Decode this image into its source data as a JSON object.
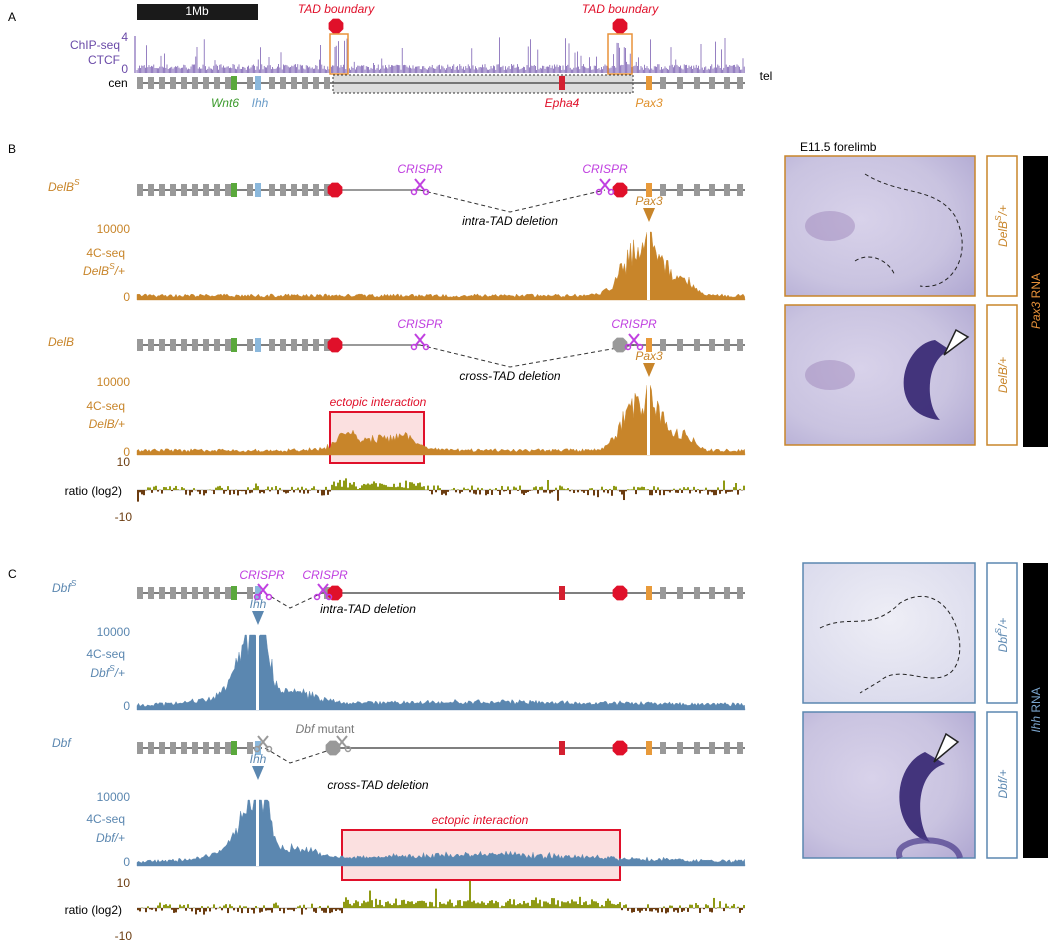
{
  "panel_a": {
    "letter": "A",
    "scale_bar": "1Mb",
    "boundary_labels": [
      "TAD boundary",
      "TAD boundary"
    ],
    "track_label": [
      "ChIP-seq",
      "CTCF"
    ],
    "axis": [
      "4",
      "0"
    ],
    "ends": [
      "cen",
      "tel"
    ],
    "genes": [
      "Wnt6",
      "Ihh",
      "Epha4",
      "Pax3"
    ]
  },
  "panel_b": {
    "letter": "B",
    "image_title": "E11.5 forelimb",
    "rows": [
      {
        "allele": {
          "base": "DelB",
          "sup": "S"
        },
        "crispr": [
          "CRISPR",
          "CRISPR"
        ],
        "deletion": "intra-TAD deletion",
        "gene_mark": "Pax3",
        "axis": [
          "10000",
          "0"
        ],
        "track_label": "4C-seq",
        "sample": {
          "base": "DelB",
          "sup": "S",
          "suffix": "/+"
        }
      },
      {
        "allele": {
          "base": "DelB"
        },
        "crispr": [
          "CRISPR",
          "CRISPR"
        ],
        "deletion": "cross-TAD deletion",
        "gene_mark": "Pax3",
        "axis": [
          "10000",
          "0"
        ],
        "track_label": "4C-seq",
        "sample": {
          "base": "DelB",
          "suffix": "/+"
        },
        "ectopic": "ectopic interaction"
      }
    ],
    "ratio": {
      "label": "ratio (log2)",
      "axis": [
        "10",
        "-10"
      ]
    },
    "image_labels": [
      {
        "base": "DelB",
        "sup": "S",
        "suffix": "/+"
      },
      {
        "base": "DelB",
        "suffix": "/+"
      }
    ],
    "rna_label": {
      "gene": "Pax3",
      "suffix": " RNA"
    }
  },
  "panel_c": {
    "letter": "C",
    "rows": [
      {
        "allele": {
          "base": "Dbf",
          "sup": "S"
        },
        "crispr": [
          "CRISPR",
          "CRISPR"
        ],
        "deletion": "intra-TAD deletion",
        "gene_mark": "Ihh",
        "axis": [
          "10000",
          "0"
        ],
        "track_label": "4C-seq",
        "sample": {
          "base": "Dbf",
          "sup": "S",
          "suffix": "/+"
        }
      },
      {
        "allele": {
          "base": "Dbf"
        },
        "mutant": {
          "gene": "Dbf",
          "suffix": " mutant"
        },
        "deletion": "cross-TAD deletion",
        "gene_mark": "Ihh",
        "axis": [
          "10000",
          "0"
        ],
        "track_label": "4C-seq",
        "sample": {
          "base": "Dbf",
          "suffix": "/+"
        },
        "ectopic": "ectopic interaction"
      }
    ],
    "ratio": {
      "label": "ratio (log2)",
      "axis": [
        "10",
        "-10"
      ]
    },
    "image_labels": [
      {
        "base": "Dbf",
        "sup": "S",
        "suffix": "/+"
      },
      {
        "base": "Dbf",
        "suffix": "/+"
      }
    ],
    "rna_label": {
      "gene": "Ihh",
      "suffix": " RNA"
    }
  }
}
